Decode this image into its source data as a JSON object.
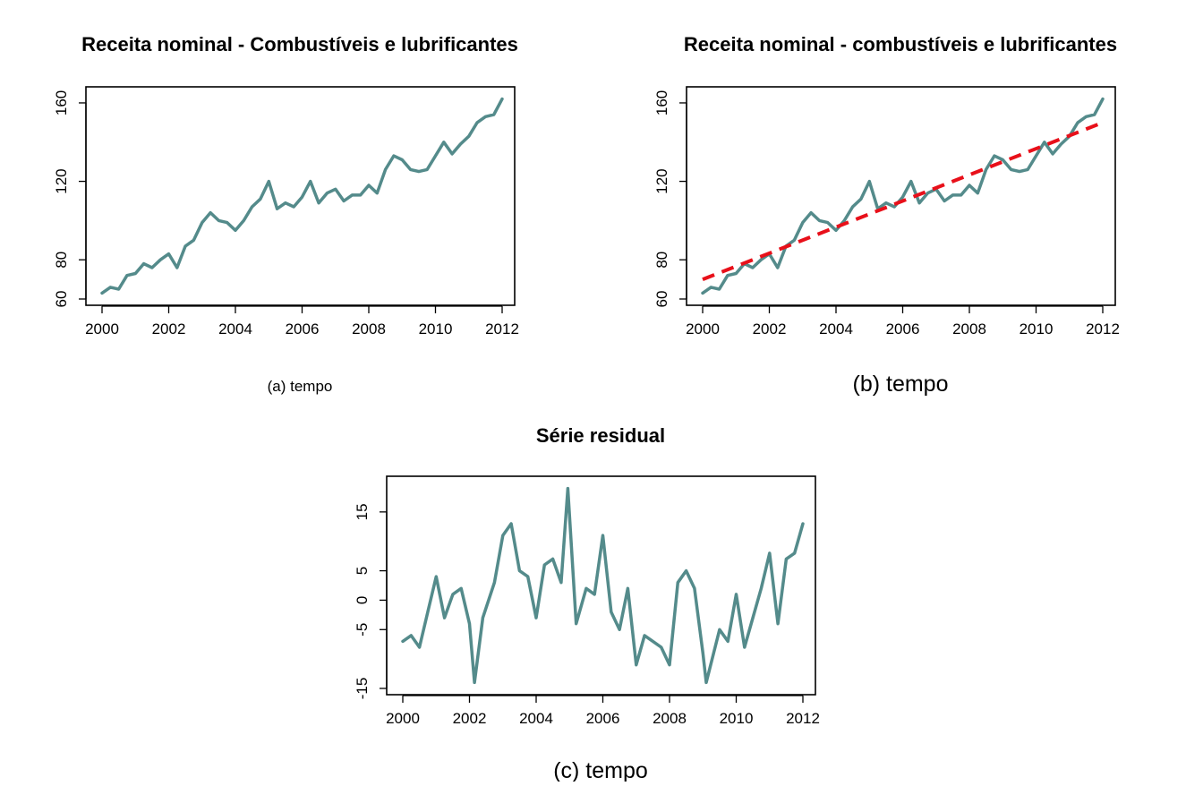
{
  "colors": {
    "series": "#548B8B",
    "trend": "#E8101A"
  },
  "chart_data": [
    {
      "type": "line",
      "title": "Receita nominal - Combustíveis e lubrificantes",
      "xlabel": "(a) tempo",
      "ylabel": "",
      "xlim": [
        2000,
        2012
      ],
      "ylim": [
        60,
        165
      ],
      "xticks": [
        "2000",
        "2002",
        "2004",
        "2006",
        "2008",
        "2010",
        "2012"
      ],
      "yticks": [
        "60",
        "80",
        "120",
        "160"
      ],
      "series": [
        {
          "x": [
            2000.0,
            2000.25,
            2000.5,
            2000.75,
            2001.0,
            2001.25,
            2001.5,
            2001.75,
            2002.0,
            2002.25,
            2002.5,
            2002.75,
            2003.0,
            2003.25,
            2003.5,
            2003.75,
            2004.0,
            2004.25,
            2004.5,
            2004.75,
            2005.0,
            2005.25,
            2005.5,
            2005.75,
            2006.0,
            2006.25,
            2006.5,
            2006.75,
            2007.0,
            2007.25,
            2007.5,
            2007.75,
            2008.0,
            2008.25,
            2008.5,
            2008.75,
            2009.0,
            2009.25,
            2009.5,
            2009.75,
            2010.0,
            2010.25,
            2010.5,
            2010.75,
            2011.0,
            2011.25,
            2011.5,
            2011.75,
            2012.0
          ],
          "values": [
            63,
            66,
            65,
            72,
            73,
            78,
            76,
            80,
            83,
            76,
            87,
            90,
            99,
            104,
            100,
            99,
            95,
            100,
            107,
            111,
            120,
            106,
            109,
            107,
            112,
            120,
            109,
            114,
            116,
            110,
            113,
            113,
            118,
            114,
            126,
            133,
            131,
            126,
            125,
            126,
            133,
            140,
            134,
            139,
            143,
            150,
            153,
            154,
            162
          ]
        }
      ]
    },
    {
      "type": "line",
      "title": "Receita nominal - combustíveis e lubrificantes",
      "xlabel": "(b) tempo",
      "ylabel": "",
      "xlim": [
        2000,
        2012
      ],
      "ylim": [
        60,
        165
      ],
      "xticks": [
        "2000",
        "2002",
        "2004",
        "2006",
        "2008",
        "2010",
        "2012"
      ],
      "yticks": [
        "60",
        "80",
        "120",
        "160"
      ],
      "series": [
        {
          "x": [
            2000.0,
            2000.25,
            2000.5,
            2000.75,
            2001.0,
            2001.25,
            2001.5,
            2001.75,
            2002.0,
            2002.25,
            2002.5,
            2002.75,
            2003.0,
            2003.25,
            2003.5,
            2003.75,
            2004.0,
            2004.25,
            2004.5,
            2004.75,
            2005.0,
            2005.25,
            2005.5,
            2005.75,
            2006.0,
            2006.25,
            2006.5,
            2006.75,
            2007.0,
            2007.25,
            2007.5,
            2007.75,
            2008.0,
            2008.25,
            2008.5,
            2008.75,
            2009.0,
            2009.25,
            2009.5,
            2009.75,
            2010.0,
            2010.25,
            2010.5,
            2010.75,
            2011.0,
            2011.25,
            2011.5,
            2011.75,
            2012.0
          ],
          "values": [
            63,
            66,
            65,
            72,
            73,
            78,
            76,
            80,
            83,
            76,
            87,
            90,
            99,
            104,
            100,
            99,
            95,
            100,
            107,
            111,
            120,
            106,
            109,
            107,
            112,
            120,
            109,
            114,
            116,
            110,
            113,
            113,
            118,
            114,
            126,
            133,
            131,
            126,
            125,
            126,
            133,
            140,
            134,
            139,
            143,
            150,
            153,
            154,
            162
          ]
        },
        {
          "x": [
            2000,
            2012
          ],
          "values": [
            70,
            150
          ],
          "style": "dashed"
        }
      ]
    },
    {
      "type": "line",
      "title": "Série residual",
      "xlabel": "(c) tempo",
      "ylabel": "",
      "xlim": [
        2000,
        2012
      ],
      "ylim": [
        -15,
        20
      ],
      "xticks": [
        "2000",
        "2002",
        "2004",
        "2006",
        "2008",
        "2010",
        "2012"
      ],
      "yticks": [
        "-15",
        "-5",
        "0",
        "5",
        "15"
      ],
      "series": [
        {
          "x": [
            2000.0,
            2000.25,
            2000.5,
            2000.75,
            2001.0,
            2001.25,
            2001.5,
            2001.75,
            2002.0,
            2002.15,
            2002.4,
            2002.75,
            2003.0,
            2003.25,
            2003.5,
            2003.75,
            2004.0,
            2004.25,
            2004.5,
            2004.75,
            2004.95,
            2005.2,
            2005.5,
            2005.75,
            2006.0,
            2006.25,
            2006.5,
            2006.75,
            2007.0,
            2007.25,
            2007.5,
            2007.75,
            2008.0,
            2008.25,
            2008.5,
            2008.75,
            2009.0,
            2009.1,
            2009.5,
            2009.75,
            2010.0,
            2010.25,
            2010.5,
            2010.75,
            2011.0,
            2011.25,
            2011.5,
            2011.75,
            2012.0
          ],
          "values": [
            -7,
            -6,
            -8,
            -2,
            4,
            -3,
            1,
            2,
            -4,
            -14,
            -3,
            3,
            11,
            13,
            5,
            4,
            -3,
            6,
            7,
            3,
            19,
            -4,
            2,
            1,
            11,
            -2,
            -5,
            2,
            -11,
            -6,
            -7,
            -8,
            -11,
            3,
            5,
            2,
            -9,
            -14,
            -5,
            -7,
            1,
            -8,
            -3,
            2,
            8,
            -4,
            7,
            8,
            13
          ]
        }
      ]
    }
  ]
}
